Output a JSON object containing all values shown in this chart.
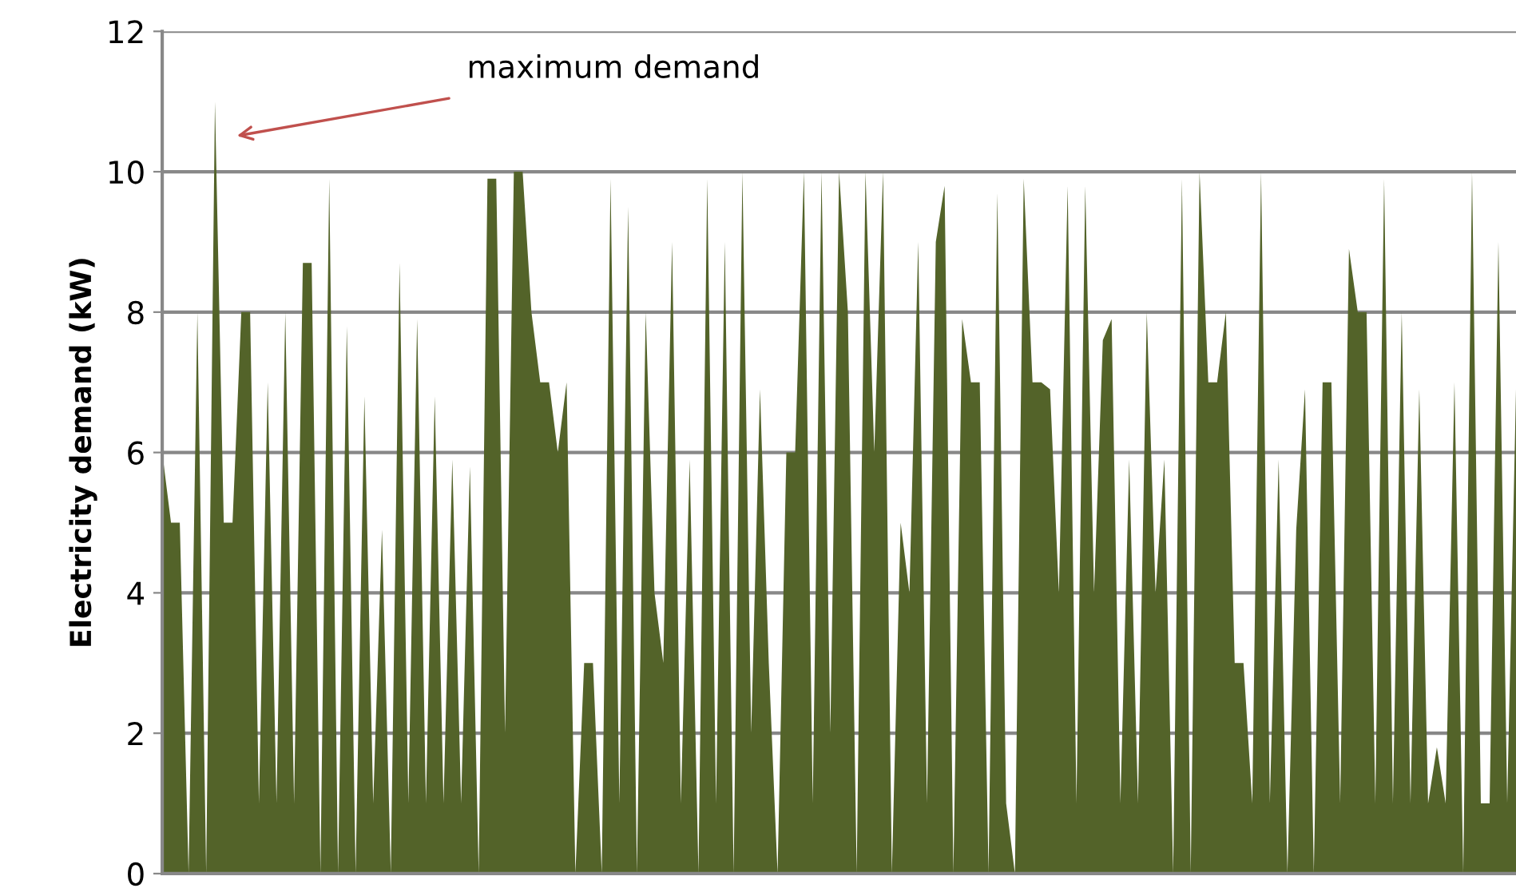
{
  "chart_data": {
    "type": "area",
    "ylabel": "Electricity demand (kW)",
    "categories": [
      null,
      null,
      null,
      null,
      null,
      null,
      null,
      null,
      null,
      null,
      null,
      null,
      null,
      null,
      null,
      null,
      null,
      null,
      null,
      null,
      null,
      null,
      null,
      null,
      null,
      null,
      null,
      null,
      null,
      null,
      null,
      null,
      null,
      null,
      null,
      null,
      null,
      null,
      null,
      null,
      null,
      null,
      null,
      null,
      null,
      null,
      null,
      null,
      null,
      null,
      null,
      null,
      null,
      null,
      null,
      null,
      null,
      null,
      null,
      null,
      null,
      null,
      null,
      null,
      null,
      null,
      null,
      null,
      null,
      null,
      null,
      null,
      null,
      null,
      null,
      null,
      null,
      null,
      null,
      null,
      null,
      null,
      null,
      null,
      null,
      null,
      null,
      null,
      null,
      null,
      null,
      null,
      null,
      null,
      null,
      null,
      null,
      null,
      null,
      null,
      null,
      null,
      null,
      null,
      null,
      null,
      null,
      null,
      null,
      null,
      null,
      null,
      null,
      null,
      null,
      null,
      null,
      null,
      null,
      null,
      null,
      null,
      null,
      null,
      null,
      null,
      null,
      null,
      null,
      null,
      null,
      null,
      null,
      null,
      null,
      null,
      null,
      null,
      null,
      null,
      null,
      null,
      null,
      null,
      null,
      null,
      null,
      null,
      null,
      null,
      null,
      null,
      null,
      null,
      null
    ],
    "values": [
      6,
      5,
      5,
      0,
      8,
      0,
      11,
      5,
      5,
      8,
      8,
      1,
      7,
      1,
      8,
      1,
      8.7,
      8.7,
      0,
      9.9,
      0,
      7.8,
      0,
      6.8,
      1,
      4.9,
      0,
      8.7,
      1,
      7.9,
      1,
      6.8,
      1,
      5.9,
      1,
      5.8,
      0,
      9.9,
      9.9,
      2,
      10,
      10,
      8,
      7,
      7,
      6,
      7,
      0,
      3,
      3,
      0,
      9.9,
      1,
      9.5,
      0,
      8,
      4,
      3,
      9,
      1,
      5.9,
      0,
      9.9,
      1,
      9,
      0,
      10,
      2,
      6.9,
      3,
      0,
      6,
      6,
      10,
      1,
      10,
      2,
      10,
      8,
      0,
      10,
      6,
      10,
      0,
      5,
      4,
      9,
      1,
      9,
      9.8,
      0,
      7.9,
      7,
      7,
      0,
      9.7,
      1,
      0,
      9.9,
      7,
      7,
      6.9,
      4,
      9.8,
      1,
      9.8,
      4,
      7.6,
      7.9,
      1,
      5.9,
      1,
      8,
      4,
      5.9,
      0,
      9.9,
      0,
      10,
      7,
      7,
      8,
      3,
      3,
      1,
      10,
      1,
      5.9,
      0,
      4.9,
      6.9,
      0,
      7,
      7,
      1,
      8.9,
      8,
      8,
      1,
      9.9,
      1,
      8,
      1,
      6.9,
      1,
      1.8,
      1,
      7,
      0,
      10,
      1,
      1,
      9,
      1,
      6.9
    ],
    "color": "#536329",
    "ylim": [
      0,
      12
    ],
    "yticks": [
      0,
      2,
      4,
      6,
      8,
      10,
      12
    ],
    "grid": "y",
    "legend": false,
    "annotations": [
      "maximum demand"
    ]
  }
}
